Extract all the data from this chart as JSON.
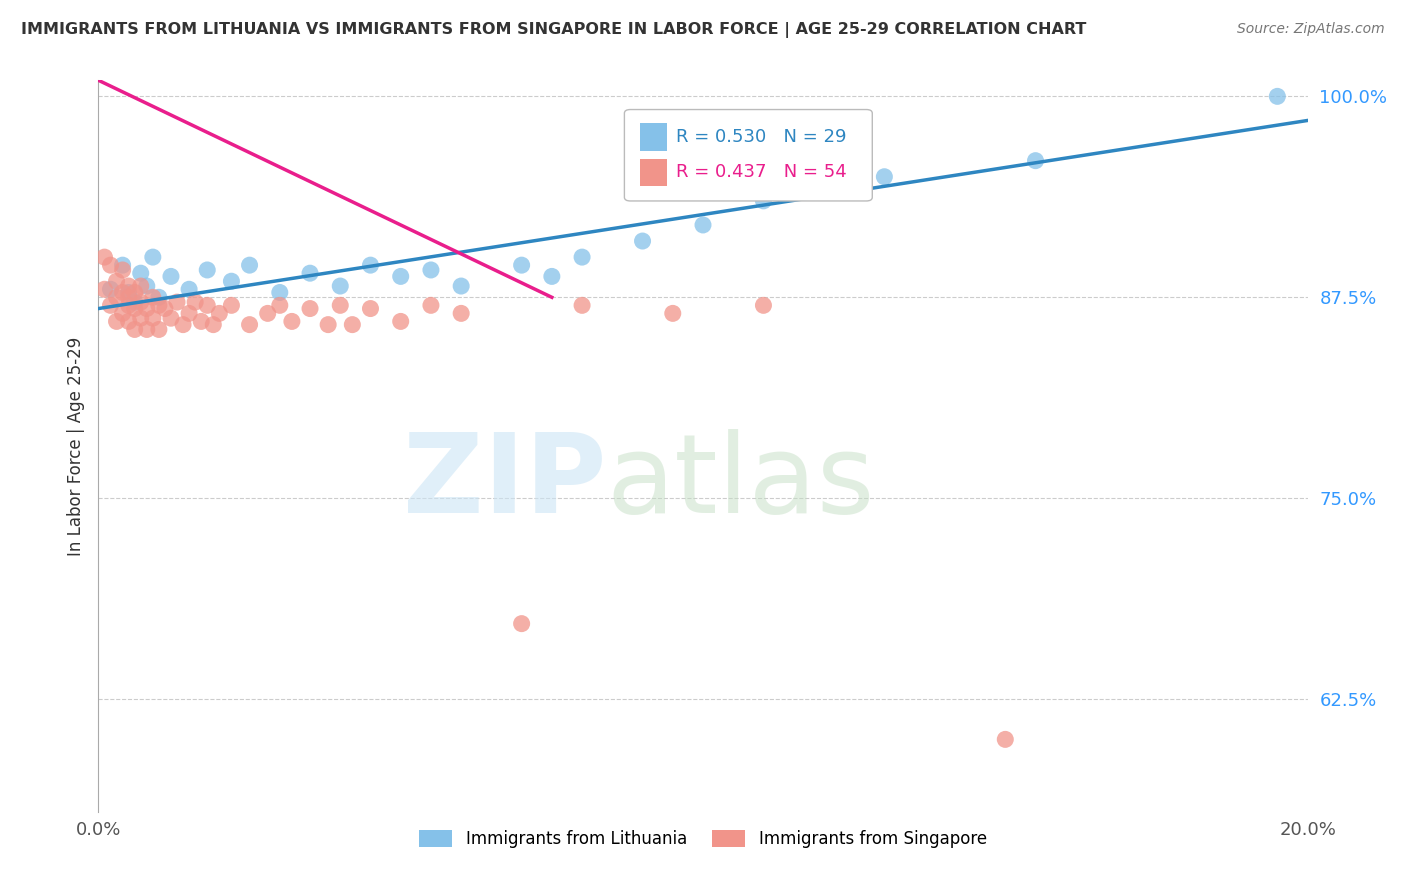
{
  "title": "IMMIGRANTS FROM LITHUANIA VS IMMIGRANTS FROM SINGAPORE IN LABOR FORCE | AGE 25-29 CORRELATION CHART",
  "source": "Source: ZipAtlas.com",
  "ylabel": "In Labor Force | Age 25-29",
  "legend_label_blue": "Immigrants from Lithuania",
  "legend_label_pink": "Immigrants from Singapore",
  "R_blue": 0.53,
  "N_blue": 29,
  "R_pink": 0.437,
  "N_pink": 54,
  "color_blue": "#85c1e9",
  "color_pink": "#f1948a",
  "line_color_blue": "#2e86c1",
  "line_color_pink": "#e91e8c",
  "xmin": 0.0,
  "xmax": 0.2,
  "ymin": 0.555,
  "ymax": 1.01,
  "yticks": [
    0.625,
    0.75,
    0.875,
    1.0
  ],
  "ytick_labels": [
    "62.5%",
    "75.0%",
    "87.5%",
    "100.0%"
  ],
  "blue_line_x0": 0.0,
  "blue_line_y0": 0.868,
  "blue_line_x1": 0.2,
  "blue_line_y1": 0.985,
  "pink_line_x0": 0.0,
  "pink_line_y0": 1.01,
  "pink_line_x1": 0.075,
  "pink_line_y1": 0.875,
  "blue_points_x": [
    0.002,
    0.004,
    0.005,
    0.006,
    0.007,
    0.008,
    0.009,
    0.01,
    0.012,
    0.015,
    0.018,
    0.022,
    0.025,
    0.03,
    0.035,
    0.04,
    0.045,
    0.05,
    0.055,
    0.06,
    0.07,
    0.075,
    0.08,
    0.09,
    0.1,
    0.11,
    0.13,
    0.155,
    0.195
  ],
  "blue_points_y": [
    0.88,
    0.895,
    0.878,
    0.872,
    0.89,
    0.882,
    0.9,
    0.875,
    0.888,
    0.88,
    0.892,
    0.885,
    0.895,
    0.878,
    0.89,
    0.882,
    0.895,
    0.888,
    0.892,
    0.882,
    0.895,
    0.888,
    0.9,
    0.91,
    0.92,
    0.935,
    0.95,
    0.96,
    1.0
  ],
  "pink_points_x": [
    0.001,
    0.001,
    0.002,
    0.002,
    0.003,
    0.003,
    0.003,
    0.004,
    0.004,
    0.004,
    0.005,
    0.005,
    0.005,
    0.005,
    0.006,
    0.006,
    0.006,
    0.007,
    0.007,
    0.007,
    0.008,
    0.008,
    0.009,
    0.009,
    0.01,
    0.01,
    0.011,
    0.012,
    0.013,
    0.014,
    0.015,
    0.016,
    0.017,
    0.018,
    0.019,
    0.02,
    0.022,
    0.025,
    0.028,
    0.03,
    0.032,
    0.035,
    0.038,
    0.04,
    0.042,
    0.045,
    0.05,
    0.055,
    0.06,
    0.07,
    0.08,
    0.095,
    0.11,
    0.15
  ],
  "pink_points_y": [
    0.9,
    0.88,
    0.895,
    0.87,
    0.885,
    0.875,
    0.86,
    0.878,
    0.865,
    0.892,
    0.87,
    0.882,
    0.86,
    0.875,
    0.868,
    0.878,
    0.855,
    0.872,
    0.862,
    0.882,
    0.868,
    0.855,
    0.875,
    0.862,
    0.87,
    0.855,
    0.868,
    0.862,
    0.872,
    0.858,
    0.865,
    0.872,
    0.86,
    0.87,
    0.858,
    0.865,
    0.87,
    0.858,
    0.865,
    0.87,
    0.86,
    0.868,
    0.858,
    0.87,
    0.858,
    0.868,
    0.86,
    0.87,
    0.865,
    0.672,
    0.87,
    0.865,
    0.87,
    0.6
  ]
}
